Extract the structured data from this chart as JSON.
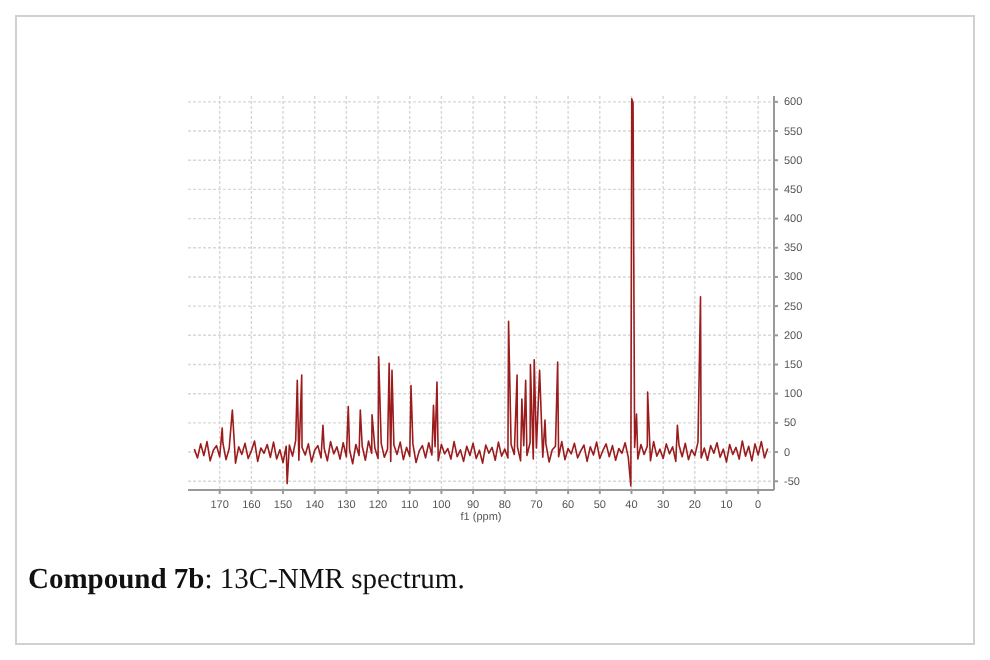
{
  "chart_data": {
    "type": "line",
    "title": "Compound 7b: 13C-NMR spectrum.",
    "xlabel": "f1 (ppm)",
    "xlim": [
      180,
      -5
    ],
    "xticks": [
      170,
      160,
      150,
      140,
      130,
      120,
      110,
      100,
      90,
      80,
      70,
      60,
      50,
      40,
      30,
      20,
      10,
      0
    ],
    "ylim": [
      -65,
      610
    ],
    "yticks": [
      -50,
      0,
      50,
      100,
      150,
      200,
      250,
      300,
      350,
      400,
      450,
      500,
      550,
      600
    ],
    "grid": true,
    "marker": "none",
    "line_style": "solid",
    "series": [
      {
        "color": "#9b1c1c",
        "x": [
          178,
          177,
          176,
          175,
          174,
          173,
          172,
          171,
          170,
          169.2,
          169,
          168,
          167,
          166,
          165,
          164,
          163,
          162,
          161,
          160,
          159,
          158,
          157,
          156,
          155,
          154,
          153,
          152,
          151,
          150,
          149,
          148.7,
          148,
          147,
          146,
          145.5,
          145,
          144.1,
          144,
          143,
          142,
          141,
          140,
          139,
          138,
          137.4,
          137,
          136,
          135,
          134,
          133,
          132,
          131,
          130,
          129.4,
          129,
          128,
          127,
          126,
          125.6,
          125,
          124,
          123,
          122,
          121.9,
          121,
          120,
          119.8,
          119,
          118,
          117,
          116.5,
          116,
          115.6,
          115,
          114,
          113,
          112,
          111,
          110,
          109.6,
          109,
          108,
          107,
          106,
          105,
          104,
          103,
          102.5,
          102,
          101.4,
          101,
          100,
          99,
          98,
          97,
          96,
          95,
          94,
          93,
          92,
          91,
          90,
          89,
          88,
          87,
          86,
          85,
          84,
          83,
          82,
          81,
          80,
          79,
          78.8,
          78,
          77,
          76.1,
          76,
          75,
          74.6,
          74,
          73.4,
          73,
          72,
          71.9,
          71,
          70.7,
          70,
          69,
          68,
          67.3,
          67,
          66,
          65,
          64,
          63.3,
          63,
          62,
          61,
          60,
          59,
          58,
          57,
          56,
          55,
          54,
          53,
          52,
          51,
          50,
          49,
          48,
          47,
          46,
          45,
          44,
          43,
          42,
          41,
          40.2,
          39.9,
          39.5,
          39,
          38.4,
          38,
          37,
          36,
          35,
          34.9,
          34,
          33,
          32,
          31,
          30,
          29,
          28,
          27,
          26,
          25.5,
          25,
          24,
          23,
          22,
          21,
          20,
          19,
          18.2,
          18,
          17,
          16,
          15,
          14,
          13,
          12,
          11,
          10,
          9,
          8,
          7,
          6,
          5,
          4,
          3,
          2,
          1,
          0,
          -1,
          -2,
          -3
        ],
        "values": [
          5,
          -10,
          14,
          -6,
          18,
          -15,
          3,
          11,
          -8,
          41,
          16,
          -13,
          6,
          72,
          -19,
          9,
          -4,
          15,
          -11,
          2,
          19,
          -16,
          7,
          -2,
          13,
          -9,
          17,
          -12,
          4,
          -18,
          10,
          -54,
          12,
          -7,
          20,
          123,
          -14,
          132,
          8,
          -5,
          14,
          -17,
          3,
          11,
          -10,
          46,
          6,
          -15,
          18,
          -3,
          9,
          -12,
          16,
          -8,
          78,
          4,
          -20,
          13,
          -6,
          72,
          10,
          -14,
          19,
          -2,
          64,
          7,
          -11,
          163,
          15,
          -9,
          5,
          152,
          -16,
          140,
          12,
          -4,
          17,
          -13,
          8,
          -7,
          114,
          14,
          -18,
          2,
          11,
          -10,
          16,
          -5,
          80,
          9,
          120,
          -15,
          13,
          -3,
          6,
          -12,
          18,
          -8,
          4,
          -16,
          10,
          -6,
          15,
          -11,
          3,
          -19,
          12,
          -2,
          8,
          -14,
          17,
          -7,
          5,
          -10,
          224,
          13,
          -4,
          132,
          9,
          -15,
          91,
          11,
          123,
          -6,
          16,
          150,
          -12,
          158,
          7,
          140,
          -9,
          55,
          14,
          -17,
          4,
          10,
          154,
          -8,
          18,
          -13,
          6,
          -3,
          15,
          -10,
          2,
          12,
          -16,
          9,
          -5,
          17,
          -11,
          3,
          14,
          -8,
          11,
          -14,
          6,
          -2,
          16,
          -9,
          -58,
          605,
          598,
          8,
          65,
          -12,
          13,
          -4,
          10,
          103,
          -15,
          18,
          -7,
          5,
          -11,
          14,
          -3,
          9,
          -16,
          46,
          12,
          -8,
          15,
          -13,
          4,
          -6,
          17,
          266,
          -10,
          7,
          -14,
          11,
          -2,
          16,
          -9,
          5,
          -17,
          13,
          -4,
          8,
          -12,
          19,
          -7,
          10,
          -15,
          14,
          -5,
          18,
          -10,
          6
        ]
      }
    ]
  }
}
